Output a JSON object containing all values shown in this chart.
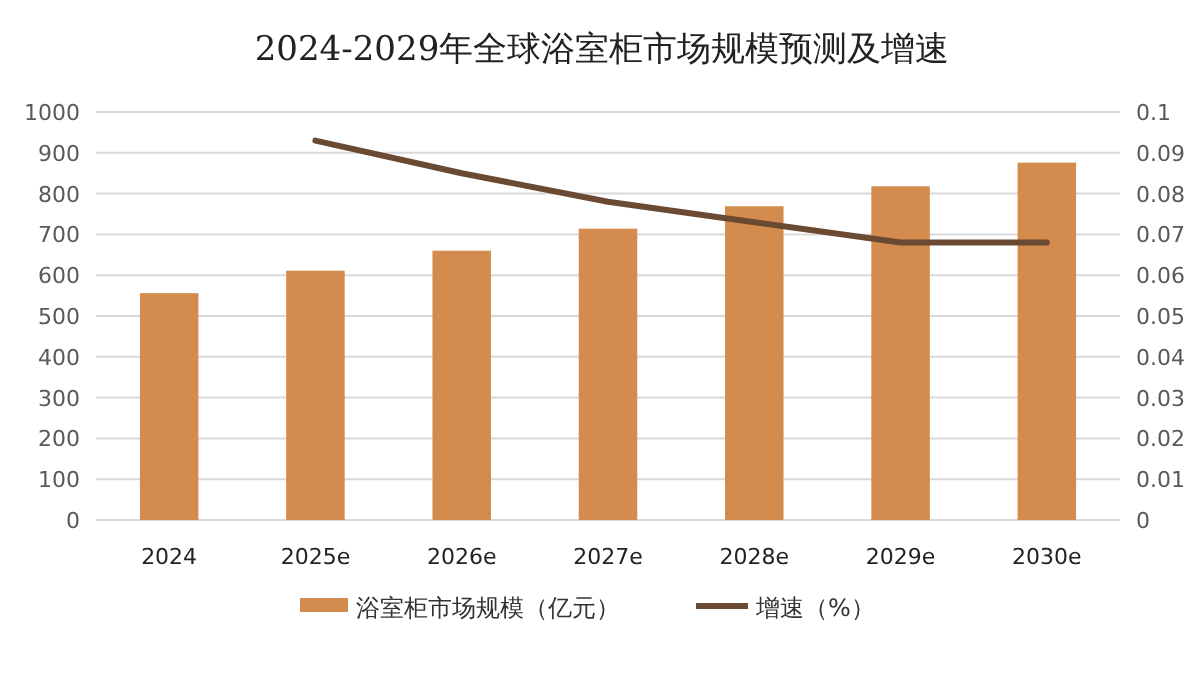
{
  "chart_data": {
    "type": "bar",
    "title": "2024-2029年全球浴室柜市场规模预测及增速",
    "categories": [
      "2024",
      "2025e",
      "2026e",
      "2027e",
      "2028e",
      "2029e",
      "2030e"
    ],
    "series": [
      {
        "name": "浴室柜市场规模（亿元）",
        "color": "#d38b4e",
        "values": [
          556,
          611,
          660,
          714,
          769,
          818,
          876
        ]
      },
      {
        "name": "增速（%）",
        "type": "line",
        "axis": "y2",
        "color": "#6b4a33",
        "values": [
          null,
          0.093,
          0.085,
          0.078,
          0.073,
          0.068,
          0.068
        ]
      }
    ],
    "ylim": [
      0,
      1000
    ],
    "yticks": [
      0,
      100,
      200,
      300,
      400,
      500,
      600,
      700,
      800,
      900,
      1000
    ],
    "y2lim": [
      0,
      0.1
    ],
    "y2ticks": [
      0,
      0.01,
      0.02,
      0.03,
      0.04,
      0.05,
      0.06,
      0.07,
      0.08,
      0.09,
      0.1
    ],
    "grid": "y",
    "legend": "bottom",
    "marker": "none"
  }
}
